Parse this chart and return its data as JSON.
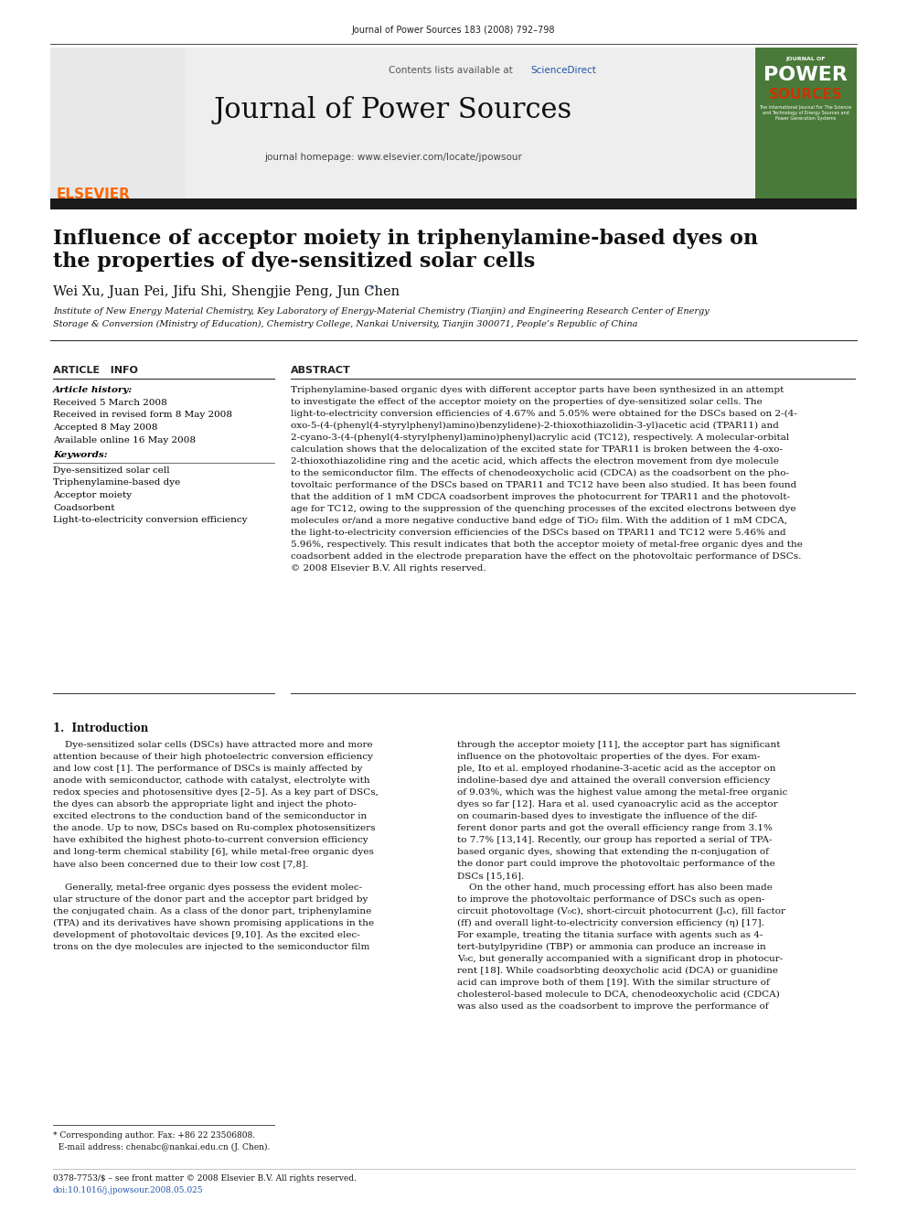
{
  "journal_header": "Journal of Power Sources 183 (2008) 792–798",
  "contents_line1": "Contents lists available at ",
  "contents_sciencedirect": "ScienceDirect",
  "journal_name": "Journal of Power Sources",
  "journal_homepage": "journal homepage: www.elsevier.com/locate/jpowsour",
  "paper_title_line1": "Influence of acceptor moiety in triphenylamine-based dyes on",
  "paper_title_line2": "the properties of dye-sensitized solar cells",
  "authors_plain": "Wei Xu, Juan Pei, Jifu Shi, Shengjie Peng, Jun Chen",
  "affiliation_line1": "Institute of New Energy Material Chemistry, Key Laboratory of Energy-Material Chemistry (Tianjin) and Engineering Research Center of Energy",
  "affiliation_line2": "Storage & Conversion (Ministry of Education), Chemistry College, Nankai University, Tianjin 300071, People’s Republic of China",
  "article_info_title": "ARTICLE   INFO",
  "abstract_title": "ABSTRACT",
  "article_history_label": "Article history:",
  "history_lines": [
    "Received 5 March 2008",
    "Received in revised form 8 May 2008",
    "Accepted 8 May 2008",
    "Available online 16 May 2008"
  ],
  "keywords_label": "Keywords:",
  "keywords": [
    "Dye-sensitized solar cell",
    "Triphenylamine-based dye",
    "Acceptor moiety",
    "Coadsorbent",
    "Light-to-electricity conversion efficiency"
  ],
  "abstract_lines": [
    "Triphenylamine-based organic dyes with different acceptor parts have been synthesized in an attempt",
    "to investigate the effect of the acceptor moiety on the properties of dye-sensitized solar cells. The",
    "light-to-electricity conversion efficiencies of 4.67% and 5.05% were obtained for the DSCs based on 2-(4-",
    "oxo-5-(4-(phenyl(4-styrylphenyl)amino)benzylidene)-2-thioxothiazolidin-3-yl)acetic acid (TPAR11) and",
    "2-cyano-3-(4-(phenyl(4-styrylphenyl)amino)phenyl)acrylic acid (TC12), respectively. A molecular-orbital",
    "calculation shows that the delocalization of the excited state for TPAR11 is broken between the 4-oxo-",
    "2-thioxothiazolidine ring and the acetic acid, which affects the electron movement from dye molecule",
    "to the semiconductor film. The effects of chenodeoxycholic acid (CDCA) as the coadsorbent on the pho-",
    "tovoltaic performance of the DSCs based on TPAR11 and TC12 have been also studied. It has been found",
    "that the addition of 1 mM CDCA coadsorbent improves the photocurrent for TPAR11 and the photovolt-",
    "age for TC12, owing to the suppression of the quenching processes of the excited electrons between dye",
    "molecules or/and a more negative conductive band edge of TiO₂ film. With the addition of 1 mM CDCA,",
    "the light-to-electricity conversion efficiencies of the DSCs based on TPAR11 and TC12 were 5.46% and",
    "5.96%, respectively. This result indicates that both the acceptor moiety of metal-free organic dyes and the",
    "coadsorbent added in the electrode preparation have the effect on the photovoltaic performance of DSCs.",
    "© 2008 Elsevier B.V. All rights reserved."
  ],
  "intro_title": "1.  Introduction",
  "intro_col1_lines": [
    "    Dye-sensitized solar cells (DSCs) have attracted more and more",
    "attention because of their high photoelectric conversion efficiency",
    "and low cost [1]. The performance of DSCs is mainly affected by",
    "anode with semiconductor, cathode with catalyst, electrolyte with",
    "redox species and photosensitive dyes [2–5]. As a key part of DSCs,",
    "the dyes can absorb the appropriate light and inject the photo-",
    "excited electrons to the conduction band of the semiconductor in",
    "the anode. Up to now, DSCs based on Ru-complex photosensitizers",
    "have exhibited the highest photo-to-current conversion efficiency",
    "and long-term chemical stability [6], while metal-free organic dyes",
    "have also been concerned due to their low cost [7,8].",
    "",
    "    Generally, metal-free organic dyes possess the evident molec-",
    "ular structure of the donor part and the acceptor part bridged by",
    "the conjugated chain. As a class of the donor part, triphenylamine",
    "(TPA) and its derivatives have shown promising applications in the",
    "development of photovoltaic devices [9,10]. As the excited elec-",
    "trons on the dye molecules are injected to the semiconductor film"
  ],
  "intro_col2_lines": [
    "through the acceptor moiety [11], the acceptor part has significant",
    "influence on the photovoltaic properties of the dyes. For exam-",
    "ple, Ito et al. employed rhodanine-3-acetic acid as the acceptor on",
    "indoline-based dye and attained the overall conversion efficiency",
    "of 9.03%, which was the highest value among the metal-free organic",
    "dyes so far [12]. Hara et al. used cyanoacrylic acid as the acceptor",
    "on coumarin-based dyes to investigate the influence of the dif-",
    "ferent donor parts and got the overall efficiency range from 3.1%",
    "to 7.7% [13,14]. Recently, our group has reported a serial of TPA-",
    "based organic dyes, showing that extending the π-conjugation of",
    "the donor part could improve the photovoltaic performance of the",
    "DSCs [15,16].",
    "    On the other hand, much processing effort has also been made",
    "to improve the photovoltaic performance of DSCs such as open-",
    "circuit photovoltage (V₀ᴄ), short-circuit photocurrent (Jₛᴄ), fill factor",
    "(ff) and overall light-to-electricity conversion efficiency (η) [17].",
    "For example, treating the titania surface with agents such as 4-",
    "tert-butylpyridine (TBP) or ammonia can produce an increase in",
    "V₀ᴄ, but generally accompanied with a significant drop in photocur-",
    "rent [18]. While coadsorbting deoxycholic acid (DCA) or guanidine",
    "acid can improve both of them [19]. With the similar structure of",
    "cholesterol-based molecule to DCA, chenodeoxycholic acid (CDCA)",
    "was also used as the coadsorbent to improve the performance of"
  ],
  "footer_star_line": "* Corresponding author. Fax: +86 22 23506808.",
  "footer_email_line": "  E-mail address: chenabc@nankai.edu.cn (J. Chen).",
  "footer_line1": "0378-7753/$ – see front matter © 2008 Elsevier B.V. All rights reserved.",
  "footer_line2": "doi:10.1016/j.jpowsour.2008.05.025",
  "bg_color": "#ffffff",
  "thick_bar_color": "#1a1a1a",
  "elsevier_color": "#ff6600",
  "sciencedirect_color": "#2255aa",
  "journal_cover_bg": "#4a7a3a",
  "gray_bg": "#eeeeee"
}
